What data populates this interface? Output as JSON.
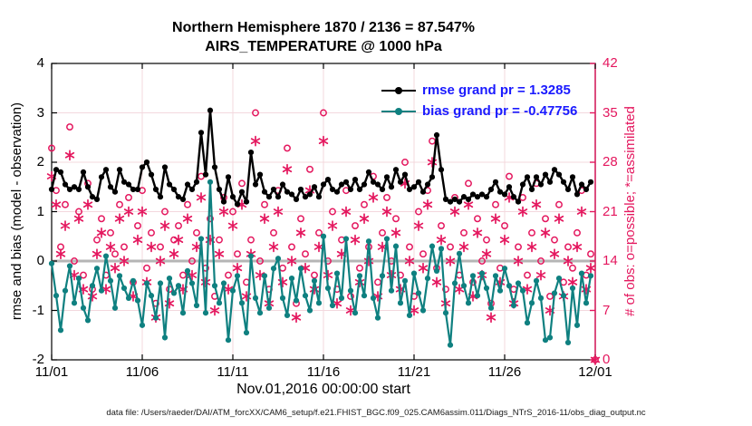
{
  "footer": "data file: /Users/raeder/DAI/ATM_forcXX/CAM6_setup/f.e21.FHIST_BGC.f09_025.CAM6assim.011/Diags_NTrS_2016-11/obs_diag_output.nc",
  "colors": {
    "background": "#ffffff",
    "frame": "#000000",
    "grid": "#f3d8de",
    "zero_line": "#b5b5b5",
    "right_axis": "#e4175e",
    "rmse": "#000000",
    "bias": "#0f8080",
    "legend_text": "#1a1aff"
  },
  "chart_data": {
    "type": "line",
    "title": "Northern Hemisphere 1870 / 2136 = 87.547%",
    "subtitle": "AIRS_TEMPERATURE @ 1000 hPa",
    "xlabel": "Nov.01,2016 00:00:00 start",
    "ylabel_left": "rmse and bias (model - observation)",
    "ylabel_right": "# of obs: o=possible; *=assimilated",
    "x_ticks": [
      "11/01",
      "11/06",
      "11/11",
      "11/16",
      "11/21",
      "11/26",
      "12/01"
    ],
    "x_tick_days": [
      0,
      5,
      10,
      15,
      20,
      25,
      30
    ],
    "x_range_days": [
      0,
      30
    ],
    "y_left_ticks": [
      4,
      3,
      2,
      1,
      0,
      -1,
      -2
    ],
    "y_left_range": [
      -2,
      4
    ],
    "y_right_ticks": [
      42,
      35,
      28,
      21,
      14,
      7,
      0
    ],
    "y_right_range": [
      0,
      42
    ],
    "grid": true,
    "bin_step_days": 0.25,
    "legend_position": "top-right-inside",
    "legend": [
      {
        "label": "rmse grand pr = 1.3285",
        "series": "rmse"
      },
      {
        "label": "bias grand pr = -0.47756",
        "series": "bias"
      }
    ],
    "zero_line": {
      "axis": "left",
      "value": 0
    },
    "series": [
      {
        "name": "rmse",
        "axis": "left",
        "type": "line",
        "marker": "filled-dot",
        "color": "#000000",
        "values": [
          1.45,
          1.85,
          1.8,
          1.55,
          1.45,
          1.5,
          1.45,
          1.8,
          1.5,
          1.3,
          1.25,
          1.7,
          1.85,
          1.5,
          1.4,
          1.85,
          1.6,
          1.55,
          1.45,
          1.45,
          1.9,
          2.0,
          1.75,
          1.45,
          1.3,
          1.9,
          1.55,
          1.45,
          1.3,
          1.25,
          1.55,
          1.45,
          1.6,
          2.6,
          1.75,
          3.05,
          1.9,
          1.45,
          1.2,
          1.7,
          1.3,
          1.15,
          1.4,
          1.2,
          2.2,
          1.55,
          1.75,
          1.4,
          1.3,
          1.45,
          1.3,
          1.55,
          1.4,
          1.35,
          1.25,
          1.45,
          1.3,
          1.35,
          1.5,
          1.3,
          1.55,
          1.65,
          1.45,
          1.4,
          1.55,
          1.6,
          1.45,
          1.65,
          1.45,
          1.55,
          1.8,
          1.6,
          1.55,
          1.45,
          1.7,
          1.5,
          1.85,
          1.6,
          1.75,
          1.45,
          1.5,
          1.6,
          1.4,
          1.55,
          1.7,
          2.55,
          1.85,
          1.25,
          1.2,
          1.25,
          1.2,
          1.3,
          1.25,
          1.35,
          1.3,
          1.35,
          1.3,
          1.45,
          1.6,
          1.4,
          1.35,
          1.5,
          1.3,
          1.2,
          1.55,
          1.7,
          1.45,
          1.7,
          1.55,
          1.75,
          1.6,
          1.85,
          1.75,
          1.6,
          1.45,
          1.7,
          1.35,
          1.55,
          1.45,
          1.6
        ]
      },
      {
        "name": "bias",
        "axis": "left",
        "type": "line",
        "marker": "filled-dot",
        "color": "#0f8080",
        "values": [
          -0.05,
          -0.7,
          -1.4,
          -0.6,
          -0.1,
          -0.85,
          -0.35,
          -0.95,
          -1.2,
          -0.5,
          -0.15,
          -0.6,
          0.1,
          -0.4,
          -0.95,
          -0.3,
          -0.55,
          -0.75,
          -0.4,
          -0.8,
          -1.3,
          -0.45,
          -0.7,
          -1.15,
          -0.45,
          -1.55,
          -0.35,
          -0.65,
          -0.5,
          -1.05,
          -0.2,
          -0.45,
          -0.9,
          0.45,
          -1.05,
          1.6,
          -0.5,
          -0.85,
          -0.45,
          -1.6,
          -0.6,
          -0.3,
          -0.85,
          -1.45,
          0.1,
          -0.75,
          -1.05,
          -0.3,
          -0.95,
          -0.15,
          0.05,
          -0.75,
          -1.1,
          -0.35,
          -0.8,
          -0.15,
          -0.7,
          -1.0,
          -0.4,
          -0.85,
          0.5,
          -0.55,
          -0.9,
          -0.25,
          -0.75,
          0.45,
          -0.6,
          -1.05,
          -0.3,
          -0.7,
          0.4,
          -0.75,
          -1.15,
          -0.3,
          0.45,
          -0.6,
          0.3,
          -0.85,
          -0.4,
          -1.1,
          -0.25,
          -0.65,
          -1.0,
          -0.35,
          0.3,
          -0.2,
          0.25,
          -1.05,
          -1.7,
          -0.45,
          0.15,
          -0.5,
          -0.85,
          -0.3,
          -0.7,
          -0.25,
          -0.55,
          -0.95,
          -0.3,
          -0.6,
          -0.15,
          -0.5,
          -0.9,
          -0.45,
          -0.6,
          -1.25,
          -0.85,
          -0.4,
          -0.75,
          -1.6,
          -1.55,
          -0.65,
          -0.35,
          -0.7,
          -1.65,
          -0.55,
          -1.3,
          -0.25,
          -0.85,
          -0.3
        ]
      },
      {
        "name": "possible_obs",
        "axis": "right",
        "type": "scatter",
        "marker": "open-circle",
        "color": "#e4175e",
        "values": [
          30,
          24,
          16,
          22,
          33,
          14,
          21,
          12,
          25,
          10,
          17,
          20,
          12,
          18,
          15,
          22,
          16,
          23,
          11,
          19,
          24,
          13,
          18,
          8,
          16,
          21,
          10,
          17,
          19,
          12,
          22,
          14,
          18,
          26,
          13,
          20,
          9,
          17,
          23,
          12,
          21,
          15,
          25,
          11,
          17,
          35,
          14,
          22,
          10,
          18,
          24,
          13,
          30,
          16,
          8,
          20,
          15,
          27,
          12,
          18,
          35,
          14,
          21,
          10,
          17,
          24,
          9,
          19,
          13,
          22,
          16,
          26,
          11,
          18,
          23,
          14,
          20,
          12,
          28,
          16,
          9,
          21,
          15,
          24,
          31,
          13,
          19,
          10,
          16,
          23,
          12,
          18,
          25,
          11,
          20,
          14,
          17,
          8,
          22,
          13,
          19,
          26,
          10,
          16,
          23,
          12,
          18,
          25,
          14,
          20,
          9,
          17,
          22,
          11,
          16,
          13,
          18,
          24,
          12,
          15,
          0
        ]
      },
      {
        "name": "assimilated_obs",
        "axis": "right",
        "type": "scatter",
        "marker": "asterisk",
        "color": "#e4175e",
        "values": [
          26,
          22,
          15,
          19,
          29,
          12,
          20,
          10,
          22,
          9,
          15,
          18,
          10,
          16,
          13,
          20,
          14,
          21,
          9,
          17,
          21,
          11,
          16,
          6,
          14,
          19,
          8,
          15,
          17,
          10,
          20,
          12,
          16,
          23,
          11,
          17,
          7,
          15,
          21,
          10,
          19,
          13,
          22,
          9,
          15,
          31,
          12,
          20,
          8,
          16,
          21,
          11,
          27,
          14,
          6,
          18,
          13,
          24,
          10,
          16,
          31,
          12,
          19,
          8,
          15,
          21,
          7,
          17,
          11,
          20,
          14,
          23,
          9,
          16,
          21,
          12,
          18,
          10,
          25,
          14,
          7,
          19,
          13,
          22,
          28,
          11,
          17,
          8,
          14,
          21,
          10,
          16,
          22,
          9,
          18,
          12,
          15,
          6,
          20,
          11,
          17,
          23,
          8,
          14,
          21,
          10,
          16,
          22,
          12,
          18,
          7,
          15,
          20,
          9,
          14,
          11,
          16,
          21,
          10,
          13,
          0
        ]
      }
    ]
  }
}
